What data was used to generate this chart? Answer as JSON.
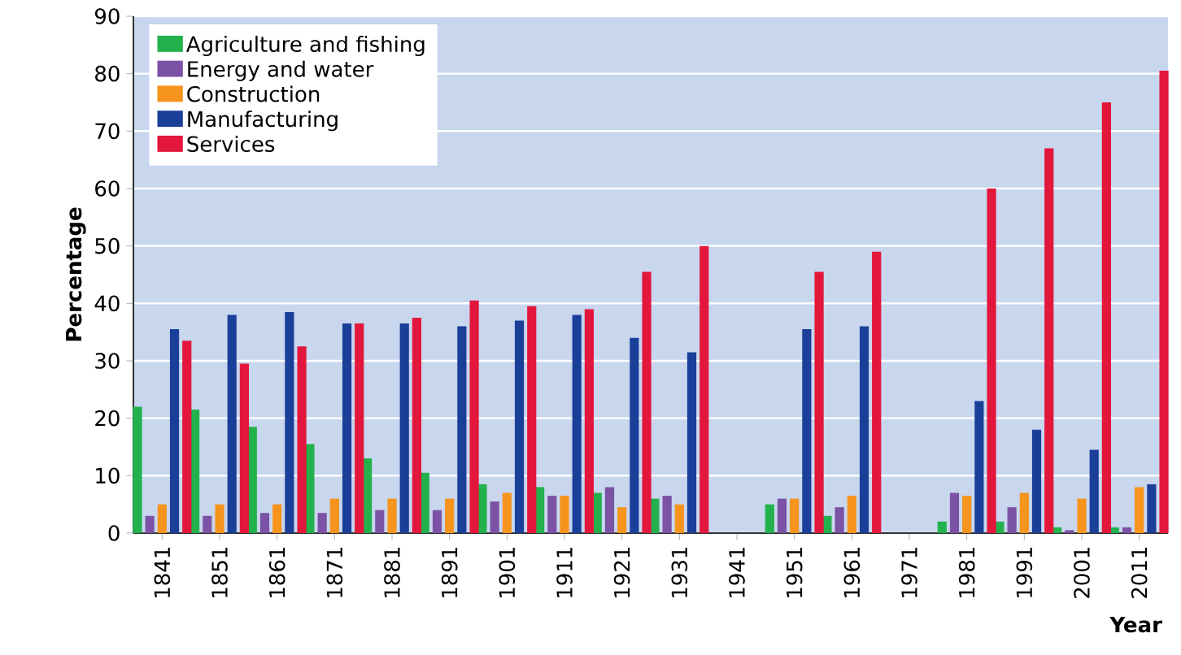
{
  "chart_data": {
    "type": "bar",
    "xlabel": "Year",
    "ylabel": "Percentage",
    "categories": [
      "1841",
      "1851",
      "1861",
      "1871",
      "1881",
      "1891",
      "1901",
      "1911",
      "1921",
      "1931",
      "1941",
      "1951",
      "1961",
      "1971",
      "1981",
      "1991",
      "2001",
      "2011"
    ],
    "series": [
      {
        "name": "Agriculture and fishing",
        "color": "#22b14c",
        "values": [
          22,
          21.5,
          18.5,
          15.5,
          13,
          10.5,
          8.5,
          8,
          7,
          6,
          null,
          5,
          3,
          null,
          2,
          2,
          1,
          1
        ]
      },
      {
        "name": "Energy and water",
        "color": "#7b52a5",
        "values": [
          3,
          3,
          3.5,
          3.5,
          4,
          4,
          5.5,
          6.5,
          8,
          6.5,
          null,
          6,
          4.5,
          null,
          7,
          4.5,
          0.5,
          1
        ]
      },
      {
        "name": "Construction",
        "color": "#f7941d",
        "values": [
          5,
          5,
          5,
          6,
          6,
          6,
          7,
          6.5,
          4.5,
          5,
          null,
          6,
          6.5,
          null,
          6.5,
          7,
          6,
          8
        ]
      },
      {
        "name": "Manufacturing",
        "color": "#1a3f99",
        "values": [
          35.5,
          38,
          38.5,
          36.5,
          36.5,
          36,
          37,
          38,
          34,
          31.5,
          null,
          35.5,
          36,
          null,
          23,
          18,
          14.5,
          8.5
        ]
      },
      {
        "name": "Services",
        "color": "#e3163b",
        "values": [
          33.5,
          29.5,
          32.5,
          36.5,
          37.5,
          40.5,
          39.5,
          39,
          45.5,
          50,
          null,
          45.5,
          49,
          null,
          60,
          67,
          75,
          80.5
        ]
      }
    ],
    "ylim": [
      0,
      90
    ],
    "yticks": [
      0,
      10,
      20,
      30,
      40,
      50,
      60,
      70,
      80,
      90
    ],
    "grid": "y",
    "legend": "top left"
  }
}
